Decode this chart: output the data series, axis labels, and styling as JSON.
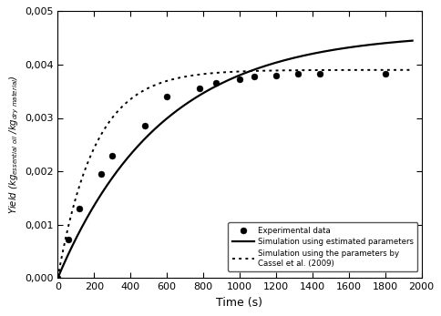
{
  "exp_x": [
    0,
    60,
    120,
    240,
    300,
    480,
    600,
    780,
    870,
    1000,
    1080,
    1200,
    1320,
    1440,
    1800
  ],
  "exp_y": [
    0.0,
    0.00072,
    0.0013,
    0.00195,
    0.0023,
    0.00285,
    0.0034,
    0.00356,
    0.00365,
    0.00372,
    0.00378,
    0.0038,
    0.00382,
    0.00382,
    0.00383
  ],
  "solid_params": {
    "A": 0.0046,
    "k": 0.00175
  },
  "dotted_params": {
    "A": 0.0039,
    "k": 0.0049
  },
  "xlabel": "Time (s)",
  "ylabel_line1": "Yield (kg",
  "ylabel_subscript1": "essential oil",
  "ylabel_line2": " /kg",
  "ylabel_subscript2": "dry material",
  "ylabel_suffix": ")",
  "xlim": [
    0,
    2000
  ],
  "ylim": [
    0.0,
    0.005
  ],
  "xticks": [
    0,
    200,
    400,
    600,
    800,
    1000,
    1200,
    1400,
    1600,
    1800,
    2000
  ],
  "yticks": [
    0.0,
    0.001,
    0.002,
    0.003,
    0.004,
    0.005
  ],
  "ytick_labels": [
    "0,000",
    "0,001",
    "0,002",
    "0,003",
    "0,004",
    "0,005"
  ],
  "xtick_labels": [
    "0",
    "200",
    "400",
    "600",
    "800",
    "1000",
    "1200",
    "1400",
    "1600",
    "1800",
    "2000"
  ],
  "legend_labels": [
    "Experimental data",
    "Simulation using estimated parameters",
    "Simulation using the parameters by\nCassel et al. (2009)"
  ],
  "bg_color": "#ffffff",
  "line_color": "#000000",
  "dot_color": "#000000",
  "dot_size": 25
}
